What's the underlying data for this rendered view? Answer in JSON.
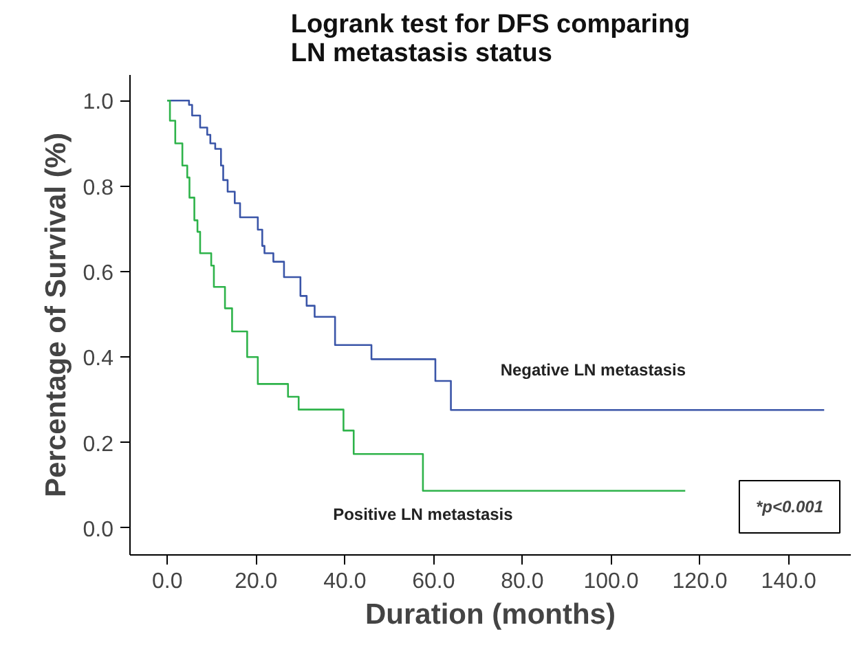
{
  "chart_data": {
    "type": "step",
    "title": "Logrank test for DFS comparing\nLN metastasis status",
    "xlabel": "Duration (months)",
    "ylabel": "Percentage of Survival (%)",
    "series": [
      {
        "name": "Negative LN metastasis",
        "color": "#3a55a8",
        "x": [
          0,
          4.9,
          5.6,
          7.4,
          9,
          9.7,
          10.8,
          12.1,
          12.6,
          13.6,
          15.2,
          16.4,
          20.4,
          21.4,
          21.9,
          23.9,
          26.3,
          30,
          31.4,
          33.2,
          37.8,
          46,
          60.4,
          63.9,
          148
        ],
        "values": [
          1.0,
          0.99,
          0.965,
          0.937,
          0.92,
          0.9,
          0.887,
          0.848,
          0.814,
          0.787,
          0.76,
          0.727,
          0.698,
          0.66,
          0.643,
          0.623,
          0.587,
          0.543,
          0.52,
          0.494,
          0.428,
          0.395,
          0.344,
          0.276,
          0.276
        ]
      },
      {
        "name": "Positive LN metastasis",
        "color": "#2eb34a",
        "x": [
          0,
          0.6,
          1.8,
          3.4,
          4.5,
          5,
          6.1,
          6.8,
          7.4,
          9.9,
          10.5,
          13,
          14.6,
          18,
          20.4,
          27.2,
          29.6,
          39.7,
          42,
          57.6,
          116.7
        ],
        "values": [
          1.0,
          0.953,
          0.9,
          0.848,
          0.82,
          0.773,
          0.72,
          0.693,
          0.643,
          0.614,
          0.564,
          0.514,
          0.46,
          0.4,
          0.337,
          0.307,
          0.277,
          0.228,
          0.173,
          0.087,
          0.087
        ]
      }
    ],
    "xlim": [
      -8.4,
      154
    ],
    "ylim": [
      -0.063,
      1.06
    ],
    "xticks": [
      {
        "value": 0,
        "label": "0.0"
      },
      {
        "value": 20,
        "label": "20.0"
      },
      {
        "value": 40,
        "label": "40.0"
      },
      {
        "value": 60,
        "label": "60.0"
      },
      {
        "value": 80,
        "label": "80.0"
      },
      {
        "value": 100,
        "label": "100.0"
      },
      {
        "value": 120,
        "label": "120.0"
      },
      {
        "value": 140,
        "label": "140.0"
      }
    ],
    "yticks": [
      {
        "value": 0,
        "label": "0.0"
      },
      {
        "value": 0.2,
        "label": "0.2"
      },
      {
        "value": 0.4,
        "label": "0.4"
      },
      {
        "value": 0.6,
        "label": "0.6"
      },
      {
        "value": 0.8,
        "label": "0.8"
      },
      {
        "value": 1.0,
        "label": "1.0"
      }
    ],
    "annotations": [
      "*p<0.001"
    ],
    "grid": false
  }
}
